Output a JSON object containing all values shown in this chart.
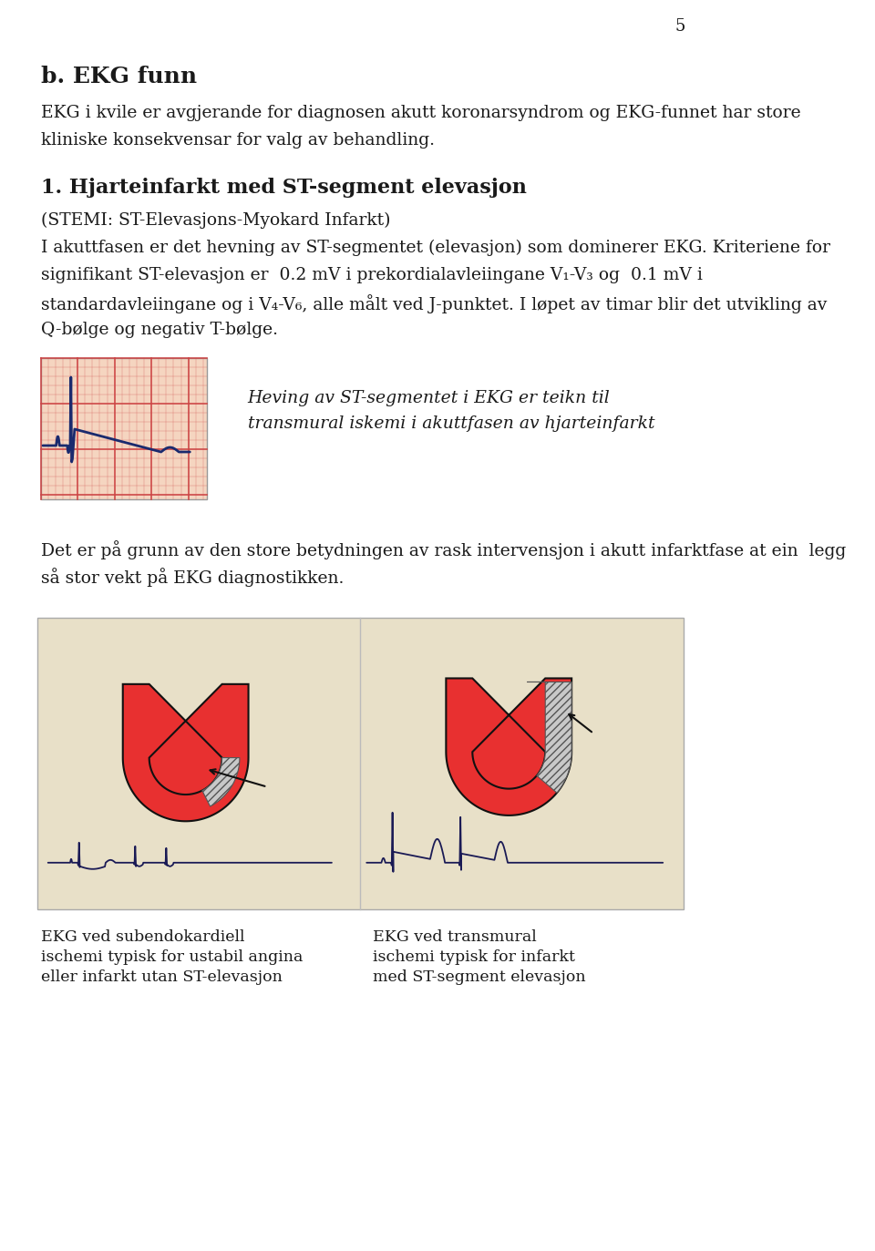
{
  "page_number": "5",
  "bg_color": "#ffffff",
  "heading1": "b. EKG funn",
  "para1_line1": "EKG i kvile er avgjerande for diagnosen akutt koronarsyndrom og EKG-funnet har store",
  "para1_line2": "kliniske konsekvensar for valg av behandling.",
  "heading2": "1. Hjarteinfarkt med ST-segment elevasjon",
  "para2_line0": "(STEMI: ST-Elevasjons-Myokard Infarkt)",
  "para2_line1": "I akuttfasen er det hevning av ST-segmentet (elevasjon) som dominerer EKG. Kriteriene for",
  "para2_line2": "signifikant ST-elevasjon er  0.2 mV i prekordialavleiingane V₁-V₃ og  0.1 mV i",
  "para2_line3": "standardavleiingane og i V₄-V₆, alle målt ved J-punktet. I løpet av timar blir det utvikling av",
  "para2_line4": "Q-bølge og negativ T-bølge.",
  "italic_line1": "Heving av ST-segmentet i EKG er teikn til",
  "italic_line2": "transmural iskemi i akuttfasen av hjarteinfarkt",
  "para3_line1": "Det er på grunn av den store betydningen av rask intervensjon i akutt infarktfase at ein  legg",
  "para3_line2": "så stor vekt på EKG diagnostikken.",
  "caption_left_line1": "EKG ved subendokardiell",
  "caption_left_line2": "ischemi typisk for ustabil angina",
  "caption_left_line3": "eller infarkt utan ST-elevasjon",
  "caption_right_line1": "EKG ved transmural",
  "caption_right_line2": "ischemi typisk for infarkt",
  "caption_right_line3": "med ST-segment elevasjon",
  "text_color": "#1a1a1a",
  "grid_bg": "#f5d5c0",
  "grid_line_color": "#cc4444",
  "ekg_color": "#1a2a6e",
  "diagram_bg": "#e8e0c8",
  "heart_color": "#e83030",
  "heart_outline": "#111111",
  "infarct_color": "#c8c8c8"
}
